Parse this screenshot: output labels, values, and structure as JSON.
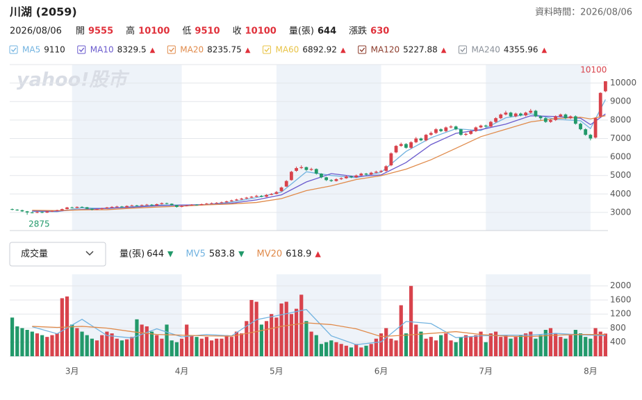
{
  "header": {
    "title": "川湖 (2059)",
    "data_time": "資料時間：2026/08/06",
    "date": "2026/08/06",
    "quote": [
      {
        "label": "開",
        "value": 9555,
        "color": "#e0313b"
      },
      {
        "label": "高",
        "value": 10100,
        "color": "#e0313b"
      },
      {
        "label": "低",
        "value": 9510,
        "color": "#e0313b"
      },
      {
        "label": "收",
        "value": 10100,
        "color": "#e0313b"
      },
      {
        "label": "量(張)",
        "value": 644,
        "color": "#222222"
      },
      {
        "label": "漲跌",
        "value": 630,
        "color": "#e0313b"
      }
    ]
  },
  "chart_data": [
    {
      "type": "candlestick",
      "watermark": "yahoo!股市",
      "up_color": "#d8434c",
      "down_color": "#22996a",
      "legend": [
        {
          "name": "MA5",
          "value": 9110,
          "color": "#72b3e0"
        },
        {
          "name": "MA10",
          "value": 8329.5,
          "arrow": "▲",
          "color": "#6a5acd"
        },
        {
          "name": "MA20",
          "value": 8235.75,
          "arrow": "▲",
          "color": "#e08a4a"
        },
        {
          "name": "MA60",
          "value": 6892.92,
          "arrow": "▲",
          "color": "#e8c346"
        },
        {
          "name": "MA120",
          "value": 5227.88,
          "arrow": "▲",
          "color": "#8c3b2b"
        },
        {
          "name": "MA240",
          "value": 4355.96,
          "arrow": "▲",
          "color": "#8a9099"
        }
      ],
      "series": [
        {
          "color": "#72b3e0",
          "x": [
            4,
            9,
            14,
            19,
            24,
            29,
            34,
            39,
            44,
            49,
            54,
            59,
            64,
            69,
            74,
            79,
            84,
            89,
            94,
            99,
            104,
            109,
            114,
            116,
            119
          ],
          "values": [
            3060,
            3040,
            3250,
            3210,
            3310,
            3400,
            3400,
            3430,
            3560,
            3800,
            4100,
            5200,
            5000,
            4880,
            5170,
            6300,
            7040,
            7530,
            7430,
            8120,
            8340,
            8040,
            7960,
            7540,
            9110
          ]
        },
        {
          "color": "#6a5acd",
          "x": [
            4,
            9,
            14,
            19,
            24,
            29,
            34,
            39,
            44,
            49,
            54,
            59,
            64,
            69,
            74,
            79,
            84,
            89,
            94,
            99,
            104,
            109,
            114,
            116,
            119
          ],
          "values": [
            3080,
            3070,
            3160,
            3230,
            3280,
            3360,
            3400,
            3420,
            3500,
            3680,
            3950,
            4650,
            5100,
            4940,
            5030,
            5700,
            6670,
            7280,
            7480,
            7780,
            8230,
            8190,
            8100,
            7750,
            8329.5
          ]
        },
        {
          "color": "#e08a4a",
          "x": [
            4,
            9,
            14,
            19,
            24,
            29,
            34,
            39,
            44,
            49,
            54,
            59,
            64,
            69,
            74,
            79,
            84,
            89,
            94,
            99,
            104,
            109,
            114,
            116,
            119
          ],
          "values": [
            3120,
            3100,
            3140,
            3150,
            3230,
            3290,
            3340,
            3410,
            3460,
            3540,
            3750,
            4180,
            4440,
            4780,
            4990,
            5340,
            5850,
            6470,
            7100,
            7500,
            7900,
            8080,
            8150,
            8060,
            8235.75
          ]
        }
      ],
      "open": [
        3180,
        3150,
        3120,
        3060,
        3000,
        2980,
        3020,
        2990,
        3050,
        3080,
        3120,
        3180,
        3270,
        3250,
        3300,
        3280,
        3200,
        3150,
        3180,
        3220,
        3270,
        3300,
        3320,
        3280,
        3350,
        3380,
        3360,
        3400,
        3420,
        3380,
        3450,
        3500,
        3470,
        3400,
        3300,
        3350,
        3380,
        3420,
        3400,
        3450,
        3480,
        3500,
        3520,
        3550,
        3600,
        3650,
        3700,
        3750,
        3800,
        3850,
        3900,
        3850,
        3950,
        4000,
        4150,
        4400,
        4750,
        5250,
        5400,
        5450,
        5300,
        5350,
        5100,
        4900,
        4750,
        4700,
        4800,
        4850,
        4950,
        4900,
        5000,
        5100,
        5050,
        5150,
        5200,
        5250,
        5550,
        6250,
        6600,
        6700,
        6500,
        6800,
        7000,
        6900,
        7200,
        7300,
        7500,
        7400,
        7600,
        7650,
        7500,
        7200,
        7250,
        7400,
        7600,
        7700,
        7650,
        7900,
        8100,
        8300,
        8400,
        8200,
        8350,
        8250,
        8400,
        8500,
        8200,
        8100,
        7900,
        8000,
        8200,
        8300,
        8100,
        8200,
        7800,
        7500,
        7200,
        7050,
        8200,
        9555
      ],
      "high": [
        3210,
        3180,
        3150,
        3080,
        3040,
        3060,
        3050,
        3080,
        3110,
        3150,
        3210,
        3300,
        3310,
        3330,
        3330,
        3300,
        3220,
        3210,
        3250,
        3300,
        3340,
        3360,
        3350,
        3380,
        3420,
        3410,
        3430,
        3460,
        3450,
        3480,
        3540,
        3530,
        3490,
        3410,
        3380,
        3410,
        3450,
        3440,
        3480,
        3510,
        3540,
        3560,
        3590,
        3640,
        3690,
        3740,
        3790,
        3840,
        3890,
        3950,
        3940,
        3990,
        4050,
        4160,
        4400,
        4750,
        5250,
        5480,
        5550,
        5480,
        5420,
        5380,
        5120,
        4930,
        4800,
        4850,
        4900,
        5000,
        4990,
        5050,
        5150,
        5140,
        5200,
        5260,
        5300,
        5560,
        6250,
        6650,
        6780,
        6750,
        6850,
        7080,
        7050,
        7250,
        7380,
        7560,
        7550,
        7650,
        7720,
        7700,
        7520,
        7300,
        7450,
        7650,
        7750,
        7750,
        7950,
        8150,
        8350,
        8500,
        8450,
        8400,
        8400,
        8450,
        8600,
        8550,
        8250,
        8150,
        8050,
        8250,
        8350,
        8350,
        8250,
        8250,
        7850,
        7550,
        7250,
        8150,
        9500,
        10100
      ],
      "low": [
        3120,
        3090,
        3030,
        2875,
        2950,
        2960,
        2960,
        2970,
        3030,
        3060,
        3100,
        3160,
        3220,
        3230,
        3250,
        3170,
        3110,
        3130,
        3160,
        3200,
        3250,
        3280,
        3250,
        3260,
        3330,
        3330,
        3340,
        3380,
        3350,
        3360,
        3430,
        3440,
        3370,
        3260,
        3280,
        3330,
        3360,
        3370,
        3390,
        3430,
        3460,
        3480,
        3500,
        3530,
        3580,
        3630,
        3680,
        3730,
        3780,
        3830,
        3820,
        3830,
        3930,
        3980,
        4120,
        4380,
        4720,
        5200,
        5350,
        5250,
        5250,
        5050,
        4850,
        4700,
        4650,
        4670,
        4760,
        4820,
        4860,
        4870,
        4970,
        5000,
        5020,
        5120,
        5150,
        5200,
        5500,
        6200,
        6550,
        6450,
        6450,
        6750,
        6850,
        6850,
        7150,
        7250,
        7350,
        7350,
        7550,
        7450,
        7150,
        7150,
        7200,
        7350,
        7550,
        7600,
        7600,
        7850,
        8050,
        8250,
        8150,
        8150,
        8200,
        8200,
        8350,
        8150,
        8000,
        7850,
        7850,
        7950,
        8150,
        8050,
        8050,
        7750,
        7450,
        7150,
        6900,
        7000,
        8150,
        9510
      ],
      "close": [
        3150,
        3120,
        3060,
        3000,
        2980,
        3020,
        2990,
        3050,
        3080,
        3120,
        3180,
        3270,
        3250,
        3300,
        3280,
        3200,
        3150,
        3180,
        3220,
        3270,
        3300,
        3320,
        3280,
        3350,
        3380,
        3360,
        3400,
        3420,
        3380,
        3450,
        3500,
        3470,
        3400,
        3300,
        3350,
        3380,
        3420,
        3400,
        3450,
        3480,
        3500,
        3520,
        3550,
        3600,
        3650,
        3700,
        3750,
        3800,
        3850,
        3900,
        3850,
        3950,
        4000,
        4100,
        4350,
        4700,
        5200,
        5400,
        5450,
        5300,
        5350,
        5100,
        4900,
        4750,
        4700,
        4800,
        4850,
        4950,
        4900,
        5000,
        5100,
        5050,
        5150,
        5200,
        5250,
        5500,
        6200,
        6600,
        6700,
        6500,
        6800,
        7000,
        6900,
        7200,
        7300,
        7500,
        7400,
        7600,
        7650,
        7500,
        7200,
        7250,
        7400,
        7600,
        7700,
        7650,
        7900,
        8100,
        8300,
        8400,
        8200,
        8350,
        8250,
        8400,
        8500,
        8200,
        8100,
        7900,
        8000,
        8200,
        8300,
        8100,
        8200,
        7800,
        7500,
        7200,
        7000,
        8100,
        9470,
        10100
      ],
      "xlim": [
        -0.5,
        119.5
      ],
      "ylim": [
        2020,
        11000
      ],
      "yticks": [
        3000,
        4000,
        5000,
        6000,
        7000,
        8000,
        9000,
        10000
      ],
      "grid": true
    },
    {
      "type": "bar",
      "selector": "成交量",
      "values_name": "量(張)",
      "value": 644,
      "arrow": "▼",
      "arrow_color": "#22996a",
      "legend": [
        {
          "name": "MV5",
          "value": 583.8,
          "arrow": "▼",
          "arrow_color": "#22996a",
          "color": "#72b3e0"
        },
        {
          "name": "MV20",
          "value": 618.9,
          "arrow": "▲",
          "arrow_color": "#e0313b",
          "color": "#e08a4a"
        }
      ],
      "values": [
        1100,
        850,
        800,
        750,
        700,
        650,
        600,
        550,
        600,
        650,
        1650,
        1700,
        900,
        800,
        700,
        600,
        500,
        450,
        600,
        700,
        650,
        500,
        450,
        480,
        550,
        1050,
        900,
        850,
        700,
        600,
        500,
        900,
        450,
        400,
        500,
        900,
        600,
        550,
        500,
        550,
        450,
        500,
        500,
        600,
        550,
        700,
        650,
        1000,
        1600,
        1550,
        900,
        1000,
        1200,
        1100,
        1500,
        1550,
        1200,
        1350,
        1750,
        1000,
        700,
        600,
        350,
        400,
        450,
        400,
        350,
        300,
        250,
        350,
        250,
        300,
        350,
        500,
        650,
        800,
        500,
        450,
        1450,
        650,
        2000,
        900,
        700,
        500,
        550,
        450,
        600,
        650,
        450,
        400,
        550,
        600,
        550,
        600,
        700,
        400,
        650,
        700,
        550,
        600,
        500,
        550,
        600,
        650,
        700,
        500,
        600,
        750,
        800,
        650,
        550,
        500,
        600,
        750,
        650,
        550,
        500,
        800,
        700,
        644
      ],
      "series": [
        {
          "color": "#72b3e0",
          "x": [
            4,
            9,
            14,
            19,
            24,
            29,
            34,
            39,
            44,
            49,
            54,
            59,
            64,
            69,
            74,
            79,
            84,
            89,
            94,
            99,
            104,
            109,
            114,
            119
          ],
          "values": [
            840,
            640,
            1050,
            590,
            520,
            780,
            550,
            620,
            580,
            1040,
            1180,
            1330,
            580,
            330,
            410,
            990,
            930,
            530,
            580,
            600,
            600,
            650,
            610,
            583.8
          ]
        },
        {
          "color": "#e08a4a",
          "x": [
            4,
            9,
            14,
            19,
            24,
            29,
            34,
            39,
            44,
            49,
            54,
            59,
            64,
            69,
            74,
            79,
            84,
            89,
            94,
            99,
            104,
            109,
            114,
            119
          ],
          "values": [
            850,
            820,
            850,
            800,
            700,
            620,
            600,
            580,
            570,
            700,
            850,
            950,
            900,
            780,
            560,
            600,
            650,
            700,
            620,
            570,
            560,
            600,
            620,
            618.9
          ]
        }
      ],
      "xlim": [
        -0.5,
        119.5
      ],
      "ylim": [
        0,
        2330
      ],
      "yticks": [
        400,
        800,
        1200,
        1600,
        2000
      ],
      "grid": true,
      "xticks": [
        {
          "value": 12,
          "label": "3月"
        },
        {
          "value": 34,
          "label": "4月"
        },
        {
          "value": 53,
          "label": "5月"
        },
        {
          "value": 74,
          "label": "6月"
        },
        {
          "value": 95,
          "label": "7月"
        },
        {
          "value": 116,
          "label": "8月"
        }
      ]
    }
  ]
}
